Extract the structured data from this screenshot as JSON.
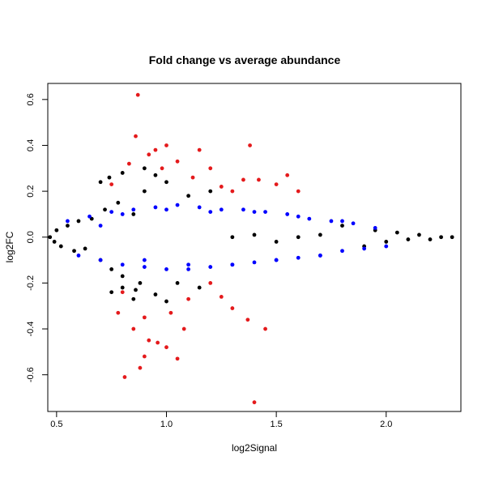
{
  "chart_data": {
    "type": "scatter",
    "title": "Fold change vs average abundance",
    "xlabel": "log2Signal",
    "ylabel": "log2FC",
    "xlim": [
      0.46,
      2.34
    ],
    "ylim": [
      -0.76,
      0.67
    ],
    "x_ticks": [
      "0.5",
      "1.0",
      "1.5",
      "2.0"
    ],
    "y_ticks": [
      "-0.6",
      "-0.4",
      "-0.2",
      "0.0",
      "0.2",
      "0.4",
      "0.6"
    ],
    "grid": false,
    "legend": "none",
    "colors": {
      "black": "#000000",
      "blue": "#0000ff",
      "red": "#e41a1c"
    },
    "series": [
      {
        "color": "#000000",
        "x": [
          0.47,
          0.49,
          0.5,
          0.52,
          0.55,
          0.58,
          0.6,
          0.63,
          0.66,
          0.7,
          0.72,
          0.75,
          0.78,
          0.8,
          0.85,
          0.88,
          0.9,
          0.95,
          1.0,
          1.05,
          1.1,
          1.15,
          1.2,
          1.3,
          1.4,
          1.5,
          1.6,
          1.7,
          1.8,
          1.9,
          1.95,
          2.0,
          2.05,
          2.1,
          2.15,
          2.2,
          2.25,
          2.3,
          0.7,
          0.75,
          0.8,
          0.85,
          0.9,
          0.95,
          1.0,
          0.74,
          0.8,
          0.86
        ],
        "y": [
          0.0,
          -0.02,
          0.03,
          -0.04,
          0.05,
          -0.06,
          0.07,
          -0.05,
          0.08,
          -0.1,
          0.12,
          -0.14,
          0.15,
          -0.17,
          0.1,
          -0.2,
          0.2,
          -0.25,
          0.24,
          -0.2,
          0.18,
          -0.22,
          0.2,
          0.0,
          0.01,
          -0.02,
          0.0,
          0.01,
          0.05,
          -0.04,
          0.03,
          -0.02,
          0.02,
          -0.01,
          0.01,
          -0.01,
          0.0,
          0.0,
          0.24,
          -0.24,
          0.28,
          -0.27,
          0.3,
          0.27,
          -0.28,
          0.26,
          -0.22,
          -0.23
        ]
      },
      {
        "color": "#0000ff",
        "x": [
          0.55,
          0.6,
          0.65,
          0.7,
          0.75,
          0.8,
          0.85,
          0.9,
          0.95,
          1.0,
          1.05,
          1.1,
          1.15,
          1.2,
          1.25,
          1.3,
          1.35,
          1.4,
          1.45,
          1.5,
          1.55,
          1.6,
          1.65,
          1.7,
          1.75,
          1.8,
          1.85,
          1.9,
          1.95,
          2.0,
          0.7,
          0.8,
          0.9,
          1.0,
          1.1,
          1.2,
          1.3,
          1.4,
          1.5,
          1.6,
          1.7,
          1.8
        ],
        "y": [
          0.07,
          -0.08,
          0.09,
          -0.1,
          0.11,
          -0.12,
          0.12,
          -0.13,
          0.13,
          -0.14,
          0.14,
          -0.14,
          0.13,
          -0.13,
          0.12,
          -0.12,
          0.12,
          -0.11,
          0.11,
          -0.1,
          0.1,
          -0.09,
          0.08,
          -0.08,
          0.07,
          -0.06,
          0.06,
          -0.05,
          0.04,
          -0.04,
          0.05,
          0.1,
          -0.1,
          0.12,
          -0.12,
          0.11,
          -0.12,
          0.11,
          -0.1,
          0.09,
          -0.08,
          0.07
        ]
      },
      {
        "color": "#e41a1c",
        "x": [
          0.87,
          0.86,
          0.81,
          0.88,
          0.9,
          0.85,
          0.92,
          0.95,
          1.0,
          1.05,
          1.1,
          1.15,
          1.2,
          1.25,
          1.3,
          1.35,
          1.38,
          1.4,
          1.42,
          1.45,
          1.5,
          1.55,
          1.6,
          0.75,
          0.8,
          0.83,
          0.78,
          1.0,
          1.05,
          1.08,
          1.12,
          0.92,
          0.96,
          0.9,
          1.37,
          1.3,
          1.25,
          1.2,
          0.98,
          1.02
        ],
        "y": [
          0.62,
          0.44,
          -0.61,
          -0.57,
          -0.52,
          -0.4,
          0.36,
          0.38,
          0.4,
          0.33,
          -0.27,
          0.38,
          -0.2,
          0.22,
          -0.31,
          0.25,
          0.4,
          -0.72,
          0.25,
          -0.4,
          0.23,
          0.27,
          0.2,
          0.23,
          -0.24,
          0.32,
          -0.33,
          -0.48,
          -0.53,
          -0.4,
          0.26,
          -0.45,
          -0.46,
          -0.35,
          -0.36,
          0.2,
          -0.26,
          0.3,
          0.3,
          -0.33
        ]
      }
    ]
  }
}
